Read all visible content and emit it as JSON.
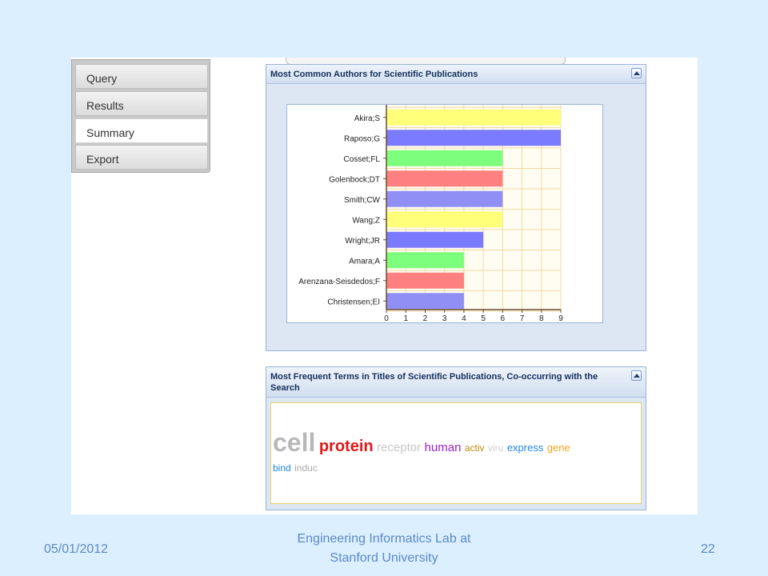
{
  "nav": {
    "tabs": [
      {
        "label": "Query"
      },
      {
        "label": "Results"
      },
      {
        "label": "Summary"
      },
      {
        "label": "Export"
      }
    ]
  },
  "authors_panel": {
    "title": "Most Common Authors for Scientific Publications"
  },
  "terms_panel": {
    "title_line1": "Most Frequent Terms in Titles of Scientific Publications, Co-occurring with the",
    "title_line2": "Search",
    "terms": [
      {
        "text": "cell",
        "color": "#b8b8b8"
      },
      {
        "text": "protein",
        "color": "#e01818"
      },
      {
        "text": "receptor",
        "color": "#c6c6c6"
      },
      {
        "text": "human",
        "color": "#9b1fd1"
      },
      {
        "text": "activ",
        "color": "#b98b0a"
      },
      {
        "text": "viru",
        "color": "#cfcfcf"
      },
      {
        "text": "express",
        "color": "#1e88e5"
      },
      {
        "text": "gene",
        "color": "#f5a623"
      },
      {
        "text": "bind",
        "color": "#1e88e5"
      },
      {
        "text": "induc",
        "color": "#a9a9a9"
      }
    ]
  },
  "chart_data": {
    "type": "bar",
    "orientation": "horizontal",
    "categories": [
      "Akira;S",
      "Raposo;G",
      "Cosset;FL",
      "Golenbock;DT",
      "Smith;CW",
      "Wang;Z",
      "Wright;JR",
      "Amara;A",
      "Arenzana-Seisdedos;F",
      "Christensen;EI"
    ],
    "values": [
      9,
      9,
      6,
      6,
      6,
      6,
      5,
      4,
      4,
      4
    ],
    "bar_colors": [
      "#ffff7a",
      "#7b7bff",
      "#7dff7d",
      "#ff8080",
      "#8f8ff5",
      "#ffff7a",
      "#7b7bff",
      "#7dff7d",
      "#ff8080",
      "#8f8ff5"
    ],
    "xticks": [
      "0",
      "1",
      "2",
      "3",
      "4",
      "5",
      "6",
      "7",
      "8",
      "9"
    ],
    "xlim": [
      0,
      9
    ],
    "grid": true
  },
  "footer": {
    "date": "05/01/2012",
    "lab_line1": "Engineering Informatics Lab at",
    "lab_line2": "Stanford University",
    "page": "22"
  }
}
